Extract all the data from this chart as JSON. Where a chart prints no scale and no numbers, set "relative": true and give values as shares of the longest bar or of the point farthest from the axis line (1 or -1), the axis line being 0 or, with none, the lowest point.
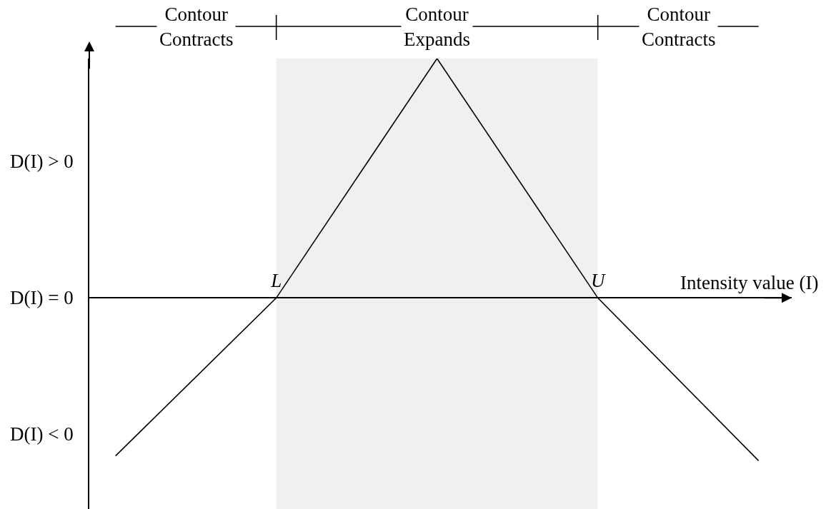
{
  "chart_data": {
    "type": "line",
    "relative": true,
    "categories": [
      null,
      "L",
      null,
      "U",
      null
    ],
    "values": [
      -0.66,
      0,
      1,
      0,
      -0.68
    ],
    "color": "#000000",
    "line_style": "solid",
    "xlabel": "Intensity value (I)",
    "annotations": [
      "Contour Contracts",
      "Contour Contracts",
      "D(I) > 0",
      "D(I) = 0",
      "D(I) < 0"
    ],
    "bands": [
      {
        "axis": "x",
        "from": "L",
        "to": "U",
        "label": "Contour Expands",
        "color": "#f0f0f0"
      }
    ]
  }
}
